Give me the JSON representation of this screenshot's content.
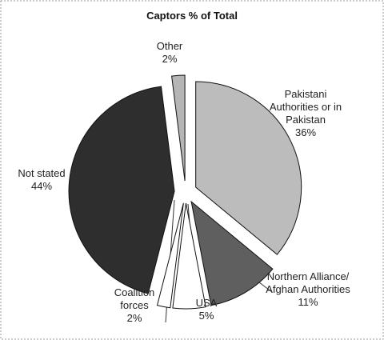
{
  "chart_data": {
    "type": "pie",
    "title": "Captors % of Total",
    "categories": [
      "Pakistani Authorities or in Pakistan",
      "Northern Alliance/ Afghan Authorities",
      "USA",
      "Coalition forces",
      "Not stated",
      "Other"
    ],
    "values": [
      36,
      11,
      5,
      2,
      44,
      2
    ],
    "value_labels": [
      "36%",
      "11%",
      "5%",
      "2%",
      "44%",
      "2%"
    ],
    "colors": [
      "#bcbcbc",
      "#5f5f5f",
      "#ffffff",
      "#ffffff",
      "#2e2e2e",
      "#b5b5b5"
    ]
  }
}
